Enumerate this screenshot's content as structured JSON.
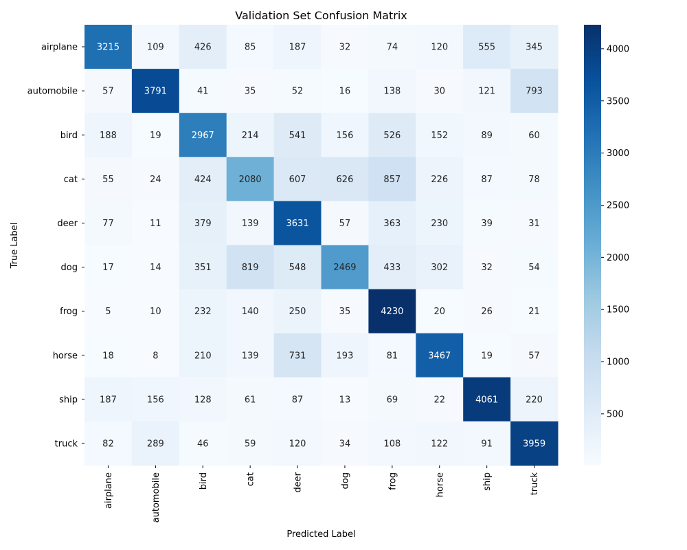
{
  "chart_data": {
    "type": "heatmap",
    "title": "Validation Set Confusion Matrix",
    "xlabel": "Predicted Label",
    "ylabel": "True Label",
    "x_categories": [
      "airplane",
      "automobile",
      "bird",
      "cat",
      "deer",
      "dog",
      "frog",
      "horse",
      "ship",
      "truck"
    ],
    "y_categories": [
      "airplane",
      "automobile",
      "bird",
      "cat",
      "deer",
      "dog",
      "frog",
      "horse",
      "ship",
      "truck"
    ],
    "values": [
      [
        3215,
        109,
        426,
        85,
        187,
        32,
        74,
        120,
        555,
        345
      ],
      [
        57,
        3791,
        41,
        35,
        52,
        16,
        138,
        30,
        121,
        793
      ],
      [
        188,
        19,
        2967,
        214,
        541,
        156,
        526,
        152,
        89,
        60
      ],
      [
        55,
        24,
        424,
        2080,
        607,
        626,
        857,
        226,
        87,
        78
      ],
      [
        77,
        11,
        379,
        139,
        3631,
        57,
        363,
        230,
        39,
        31
      ],
      [
        17,
        14,
        351,
        819,
        548,
        2469,
        433,
        302,
        32,
        54
      ],
      [
        5,
        10,
        232,
        140,
        250,
        35,
        4230,
        20,
        26,
        21
      ],
      [
        18,
        8,
        210,
        139,
        731,
        193,
        81,
        3467,
        19,
        57
      ],
      [
        187,
        156,
        128,
        61,
        87,
        13,
        69,
        22,
        4061,
        220
      ],
      [
        82,
        289,
        46,
        59,
        120,
        34,
        108,
        122,
        91,
        3959
      ]
    ],
    "colormap": "Blues",
    "color_range": [
      5,
      4230
    ],
    "colorbar_ticks": [
      500,
      1000,
      1500,
      2000,
      2500,
      3000,
      3500,
      4000
    ],
    "annotations": true,
    "grid": false
  }
}
